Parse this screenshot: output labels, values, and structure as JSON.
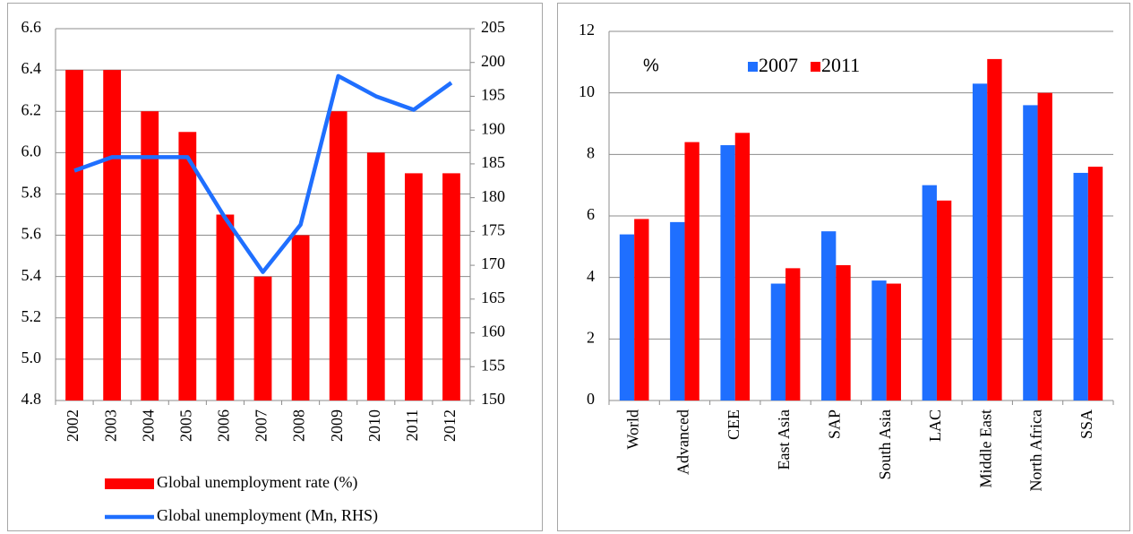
{
  "chart_data": [
    {
      "type": "bar",
      "categories": [
        "2002",
        "2003",
        "2004",
        "2005",
        "2006",
        "2007",
        "2008",
        "2009",
        "2010",
        "2011",
        "2012"
      ],
      "series": [
        {
          "name": "Global unemployment rate (%)",
          "color": "#ff0000",
          "values": [
            6.4,
            6.4,
            6.2,
            6.1,
            5.7,
            5.4,
            5.6,
            6.2,
            6.0,
            5.9,
            5.9
          ]
        },
        {
          "name": "Global unemployment (Mn, RHS)",
          "color": "#1f6fff",
          "type": "line",
          "axis": "y2",
          "values": [
            184,
            186,
            186,
            186,
            177,
            169,
            176,
            198,
            195,
            193,
            197
          ]
        }
      ],
      "ylim": [
        4.8,
        6.6
      ],
      "yticks": [
        4.8,
        {
          "value": 5,
          "label": "5.0"
        },
        5.2,
        5.4,
        5.6,
        5.8,
        {
          "value": 6,
          "label": "6.0"
        },
        6.2,
        6.4,
        6.6
      ],
      "y2lim": [
        150,
        205
      ],
      "y2ticks": [
        150,
        155,
        160,
        165,
        170,
        175,
        180,
        185,
        190,
        195,
        200,
        205
      ],
      "grid": true,
      "legend": "bottom"
    },
    {
      "type": "bar",
      "annotation": "%",
      "categories": [
        "World",
        "Advanced",
        "CEE",
        "East Asia",
        "SAP",
        "South Asia",
        "LAC",
        "Middle East",
        "North Africa",
        "SSA"
      ],
      "series": [
        {
          "name": "2007",
          "color": "#1f6fff",
          "values": [
            5.4,
            5.8,
            8.3,
            3.8,
            5.5,
            3.9,
            7.0,
            10.3,
            9.6,
            7.4
          ]
        },
        {
          "name": "2011",
          "color": "#ff0000",
          "values": [
            5.9,
            8.4,
            8.7,
            4.3,
            4.4,
            3.8,
            6.5,
            11.1,
            10.0,
            7.6
          ]
        }
      ],
      "ylim": [
        0,
        12
      ],
      "yticks": [
        0,
        2,
        4,
        6,
        8,
        10,
        12
      ],
      "grid": true,
      "legend": "top"
    }
  ]
}
